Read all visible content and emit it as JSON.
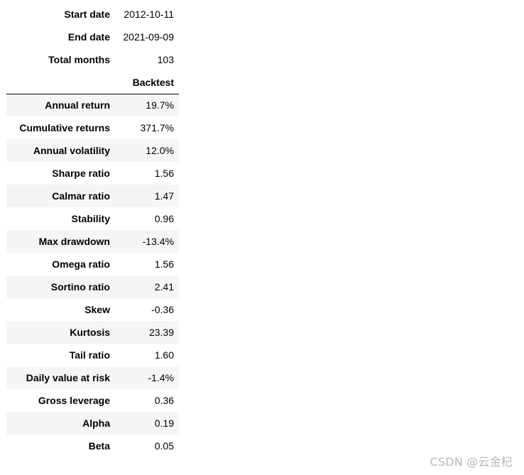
{
  "summary": [
    {
      "label": "Start date",
      "value": "2012-10-11"
    },
    {
      "label": "End date",
      "value": "2021-09-09"
    },
    {
      "label": "Total months",
      "value": "103"
    }
  ],
  "column_header": "Backtest",
  "metrics": [
    {
      "label": "Annual return",
      "value": "19.7%"
    },
    {
      "label": "Cumulative returns",
      "value": "371.7%"
    },
    {
      "label": "Annual volatility",
      "value": "12.0%"
    },
    {
      "label": "Sharpe ratio",
      "value": "1.56"
    },
    {
      "label": "Calmar ratio",
      "value": "1.47"
    },
    {
      "label": "Stability",
      "value": "0.96"
    },
    {
      "label": "Max drawdown",
      "value": "-13.4%"
    },
    {
      "label": "Omega ratio",
      "value": "1.56"
    },
    {
      "label": "Sortino ratio",
      "value": "2.41"
    },
    {
      "label": "Skew",
      "value": "-0.36"
    },
    {
      "label": "Kurtosis",
      "value": "23.39"
    },
    {
      "label": "Tail ratio",
      "value": "1.60"
    },
    {
      "label": "Daily value at risk",
      "value": "-1.4%"
    },
    {
      "label": "Gross leverage",
      "value": "0.36"
    },
    {
      "label": "Alpha",
      "value": "0.19"
    },
    {
      "label": "Beta",
      "value": "0.05"
    }
  ],
  "watermark": "CSDN @云金杞"
}
